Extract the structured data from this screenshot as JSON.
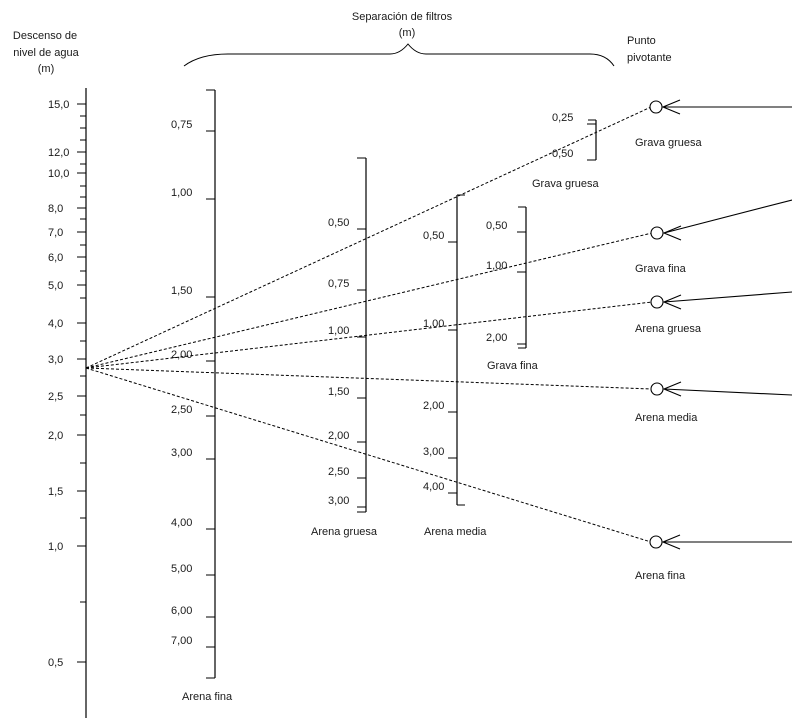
{
  "headings": {
    "left_l1": "Descenso de",
    "left_l2": "nivel de agua",
    "left_l3": "(m)",
    "sep_l1": "Separación de filtros",
    "sep_l2": "(m)",
    "pivot_l1": "Punto",
    "pivot_l2": "pivotante"
  },
  "drawdown_axis": {
    "ticks": [
      "15,0",
      "12,0",
      "10,0",
      "8,0",
      "7,0",
      "6,0",
      "5,0",
      "4,0",
      "3,0",
      "2,5",
      "2,0",
      "1,5",
      "1,0",
      "0,5"
    ]
  },
  "scales": [
    {
      "id": "arena-fina",
      "label": "Arena fina",
      "ticks": [
        "0,75",
        "1,00",
        "1,50",
        "2,00",
        "2,50",
        "3,00",
        "4,00",
        "5,00",
        "6,00",
        "7,00"
      ]
    },
    {
      "id": "arena-gruesa",
      "label": "Arena gruesa",
      "ticks": [
        "0,50",
        "0,75",
        "1,00",
        "1,50",
        "2,00",
        "2,50",
        "3,00"
      ]
    },
    {
      "id": "arena-media",
      "label": "Arena media",
      "ticks": [
        "0,50",
        "1,00",
        "2,00",
        "3,00",
        "4,00"
      ]
    },
    {
      "id": "grava-fina",
      "label": "Grava fina",
      "ticks": [
        "0,50",
        "1,00",
        "2,00"
      ]
    },
    {
      "id": "grava-gruesa",
      "label": "Grava gruesa",
      "ticks": [
        "0,25",
        "0,50"
      ]
    }
  ],
  "pivots": [
    {
      "id": "grava-gruesa",
      "label": "Grava gruesa"
    },
    {
      "id": "grava-fina",
      "label": "Grava fina"
    },
    {
      "id": "arena-gruesa",
      "label": "Arena gruesa"
    },
    {
      "id": "arena-media",
      "label": "Arena media"
    },
    {
      "id": "arena-fina",
      "label": "Arena fina"
    }
  ]
}
